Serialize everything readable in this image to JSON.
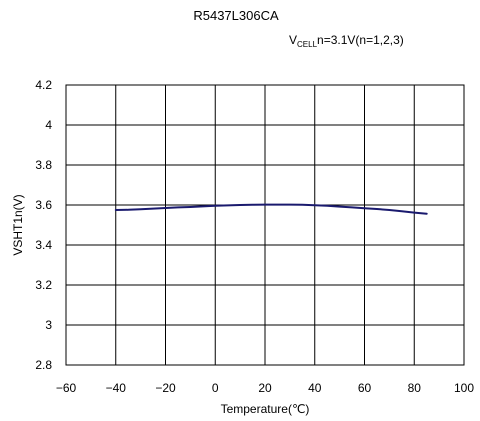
{
  "chart_data": {
    "type": "line",
    "title": "R5437L306CA",
    "subtitle": {
      "prefix": "V",
      "subscript": "CELL",
      "suffix": "n=3.1V(n=1,2,3)"
    },
    "xlabel": "Temperature(℃)",
    "ylabel": "VSHT1n(V)",
    "xlim": [
      -60,
      100
    ],
    "ylim": [
      2.8,
      4.2
    ],
    "xticks": [
      -60,
      -40,
      -20,
      0,
      20,
      40,
      60,
      80,
      100
    ],
    "yticks": [
      2.8,
      3,
      3.2,
      3.4,
      3.6,
      3.8,
      4,
      4.2
    ],
    "xtick_labels": [
      "−60",
      "−40",
      "−20",
      "0",
      "20",
      "40",
      "60",
      "80",
      "100"
    ],
    "ytick_labels": [
      "2.8",
      "3",
      "3.2",
      "3.4",
      "3.6",
      "3.8",
      "4",
      "4.2"
    ],
    "grid": true,
    "legend": "none",
    "series": [
      {
        "color": "#1a1a6e",
        "x": [
          -40,
          -35,
          -30,
          -25,
          -20,
          -15,
          -10,
          -5,
          0,
          5,
          10,
          15,
          20,
          25,
          30,
          35,
          40,
          45,
          50,
          55,
          60,
          65,
          70,
          75,
          80,
          85
        ],
        "y": [
          3.575,
          3.576,
          3.579,
          3.582,
          3.585,
          3.588,
          3.59,
          3.593,
          3.596,
          3.598,
          3.6,
          3.601,
          3.602,
          3.602,
          3.602,
          3.601,
          3.599,
          3.596,
          3.592,
          3.588,
          3.584,
          3.58,
          3.575,
          3.569,
          3.562,
          3.556
        ]
      }
    ]
  }
}
